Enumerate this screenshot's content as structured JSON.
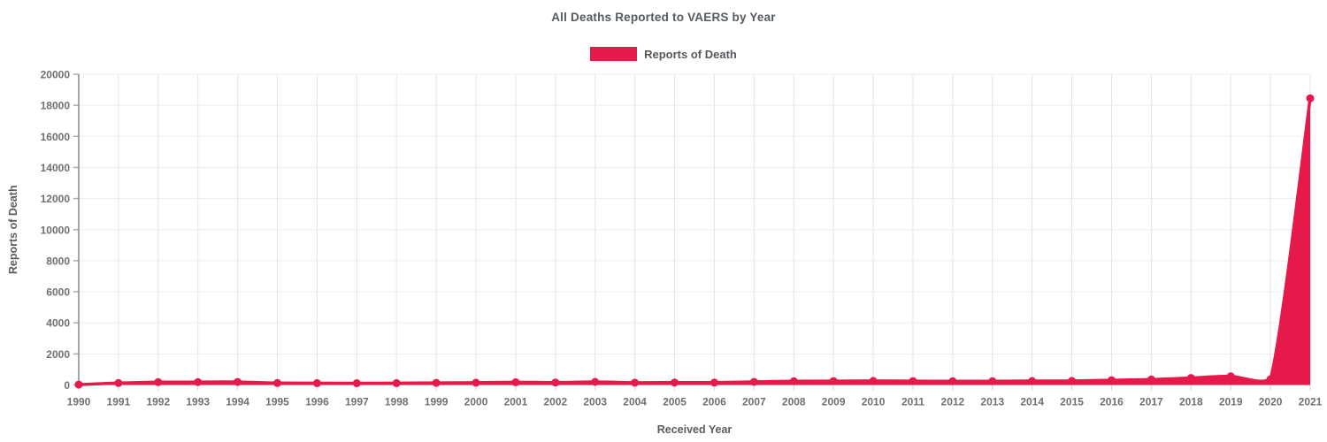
{
  "chart_data": {
    "type": "area",
    "title": "All Deaths Reported to VAERS by Year",
    "xlabel": "Received Year",
    "ylabel": "Reports of Death",
    "legend_position": "top-center",
    "grid": true,
    "ylim": [
      0,
      20000
    ],
    "yticks": [
      0,
      2000,
      4000,
      6000,
      8000,
      10000,
      12000,
      14000,
      16000,
      18000,
      20000
    ],
    "x": [
      1990,
      1991,
      1992,
      1993,
      1994,
      1995,
      1996,
      1997,
      1998,
      1999,
      2000,
      2001,
      2002,
      2003,
      2004,
      2005,
      2006,
      2007,
      2008,
      2009,
      2010,
      2011,
      2012,
      2013,
      2014,
      2015,
      2016,
      2017,
      2018,
      2019,
      2020,
      2021
    ],
    "series": [
      {
        "name": "Reports of Death",
        "color": "#e6194b",
        "values": [
          24,
          127,
          180,
          189,
          194,
          127,
          118,
          116,
          122,
          139,
          150,
          179,
          158,
          200,
          149,
          158,
          155,
          200,
          245,
          250,
          260,
          250,
          240,
          245,
          255,
          260,
          310,
          350,
          450,
          560,
          370,
          18450
        ]
      }
    ],
    "colors": {
      "accent": "#e6194b",
      "axis_line": "#9a9da0",
      "grid_vertical": "#e4e4e4",
      "grid_horizontal": "#ececec",
      "tick_text": "#6e7073",
      "title_text": "#555a5f"
    }
  }
}
